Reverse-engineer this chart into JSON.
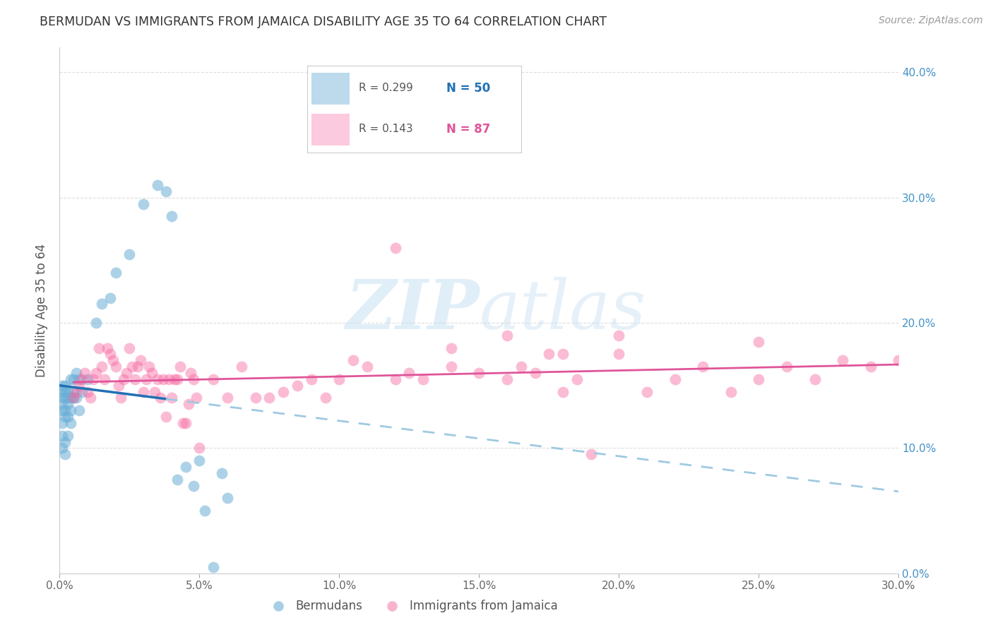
{
  "title": "BERMUDAN VS IMMIGRANTS FROM JAMAICA DISABILITY AGE 35 TO 64 CORRELATION CHART",
  "source": "Source: ZipAtlas.com",
  "ylabel_label": "Disability Age 35 to 64",
  "xlim": [
    0.0,
    0.3
  ],
  "ylim": [
    0.0,
    0.42
  ],
  "blue_color": "#6baed6",
  "pink_color": "#f768a1",
  "line_blue": "#2171b5",
  "line_pink": "#e05599",
  "dashed_blue": "#9ecae1",
  "watermark_zip": "ZIP",
  "watermark_atlas": "atlas",
  "legend_r1": "R = 0.299",
  "legend_n1": "N = 50",
  "legend_r2": "R = 0.143",
  "legend_n2": "N = 87",
  "bermudans_x": [
    0.001,
    0.001,
    0.001,
    0.001,
    0.001,
    0.001,
    0.001,
    0.001,
    0.002,
    0.002,
    0.002,
    0.002,
    0.002,
    0.002,
    0.002,
    0.003,
    0.003,
    0.003,
    0.003,
    0.003,
    0.004,
    0.004,
    0.004,
    0.004,
    0.005,
    0.005,
    0.005,
    0.006,
    0.006,
    0.007,
    0.007,
    0.008,
    0.01,
    0.013,
    0.015,
    0.018,
    0.02,
    0.025,
    0.03,
    0.035,
    0.038,
    0.04,
    0.042,
    0.045,
    0.048,
    0.05,
    0.052,
    0.055,
    0.058,
    0.06
  ],
  "bermudans_y": [
    0.135,
    0.14,
    0.145,
    0.13,
    0.12,
    0.15,
    0.11,
    0.1,
    0.14,
    0.145,
    0.13,
    0.125,
    0.15,
    0.105,
    0.095,
    0.14,
    0.145,
    0.135,
    0.125,
    0.11,
    0.155,
    0.14,
    0.13,
    0.12,
    0.155,
    0.145,
    0.14,
    0.16,
    0.14,
    0.155,
    0.13,
    0.145,
    0.155,
    0.2,
    0.215,
    0.22,
    0.24,
    0.255,
    0.295,
    0.31,
    0.305,
    0.285,
    0.075,
    0.085,
    0.07,
    0.09,
    0.05,
    0.005,
    0.08,
    0.06
  ],
  "jamaica_x": [
    0.005,
    0.006,
    0.007,
    0.008,
    0.009,
    0.01,
    0.011,
    0.012,
    0.013,
    0.014,
    0.015,
    0.016,
    0.017,
    0.018,
    0.019,
    0.02,
    0.021,
    0.022,
    0.023,
    0.024,
    0.025,
    0.026,
    0.027,
    0.028,
    0.029,
    0.03,
    0.031,
    0.032,
    0.033,
    0.034,
    0.035,
    0.036,
    0.037,
    0.038,
    0.039,
    0.04,
    0.041,
    0.042,
    0.043,
    0.044,
    0.045,
    0.046,
    0.047,
    0.048,
    0.049,
    0.05,
    0.055,
    0.06,
    0.065,
    0.07,
    0.075,
    0.08,
    0.085,
    0.09,
    0.095,
    0.1,
    0.105,
    0.11,
    0.12,
    0.125,
    0.13,
    0.14,
    0.15,
    0.16,
    0.165,
    0.17,
    0.175,
    0.18,
    0.185,
    0.19,
    0.2,
    0.21,
    0.22,
    0.23,
    0.24,
    0.25,
    0.26,
    0.27,
    0.28,
    0.29,
    0.12,
    0.14,
    0.25,
    0.18,
    0.2,
    0.16,
    0.3
  ],
  "jamaica_y": [
    0.14,
    0.145,
    0.15,
    0.155,
    0.16,
    0.145,
    0.14,
    0.155,
    0.16,
    0.18,
    0.165,
    0.155,
    0.18,
    0.175,
    0.17,
    0.165,
    0.15,
    0.14,
    0.155,
    0.16,
    0.18,
    0.165,
    0.155,
    0.165,
    0.17,
    0.145,
    0.155,
    0.165,
    0.16,
    0.145,
    0.155,
    0.14,
    0.155,
    0.125,
    0.155,
    0.14,
    0.155,
    0.155,
    0.165,
    0.12,
    0.12,
    0.135,
    0.16,
    0.155,
    0.14,
    0.1,
    0.155,
    0.14,
    0.165,
    0.14,
    0.14,
    0.145,
    0.15,
    0.155,
    0.14,
    0.155,
    0.17,
    0.165,
    0.155,
    0.16,
    0.155,
    0.165,
    0.16,
    0.155,
    0.165,
    0.16,
    0.175,
    0.145,
    0.155,
    0.095,
    0.175,
    0.145,
    0.155,
    0.165,
    0.145,
    0.155,
    0.165,
    0.155,
    0.17,
    0.165,
    0.26,
    0.18,
    0.185,
    0.175,
    0.19,
    0.19,
    0.17
  ]
}
